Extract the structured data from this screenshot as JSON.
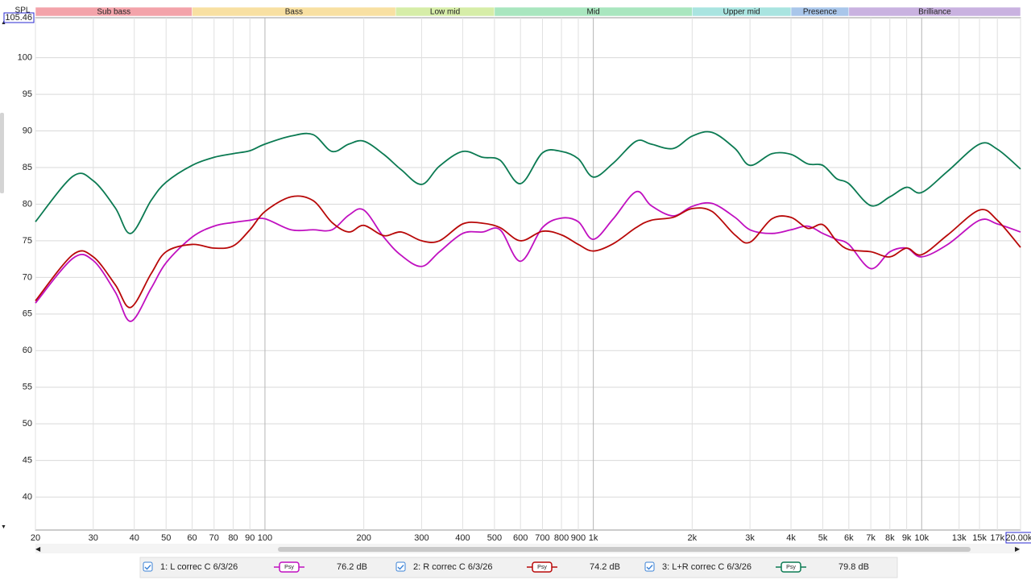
{
  "chart_data": {
    "type": "line",
    "y_label": "SPL",
    "log_x": true,
    "grid": true,
    "xlim": [
      20,
      20000
    ],
    "ylim": [
      35.5,
      105.46
    ],
    "yticks": [
      40,
      45,
      50,
      55,
      60,
      65,
      70,
      75,
      80,
      85,
      90,
      95,
      100
    ],
    "xticks": [
      20,
      30,
      40,
      50,
      60,
      70,
      80,
      90,
      100,
      200,
      300,
      400,
      500,
      600,
      700,
      800,
      900,
      {
        "value": 1000,
        "label": "1k"
      },
      {
        "value": 2000,
        "label": "2k"
      },
      {
        "value": 3000,
        "label": "3k"
      },
      {
        "value": 4000,
        "label": "4k"
      },
      {
        "value": 5000,
        "label": "5k"
      },
      {
        "value": 6000,
        "label": "6k"
      },
      {
        "value": 7000,
        "label": "7k"
      },
      {
        "value": 8000,
        "label": "8k"
      },
      {
        "value": 9000,
        "label": "9k"
      },
      {
        "value": 10000,
        "label": "10k"
      },
      {
        "value": 13000,
        "label": "13k",
        "color": "#9a9a9a"
      },
      {
        "value": 15000,
        "label": "15k",
        "color": "#9a9a9a"
      },
      {
        "value": 17000,
        "label": "17k",
        "color": "#9a9a9a"
      },
      {
        "value": 20000,
        "label": "20.00k"
      }
    ],
    "bands": [
      {
        "name": "Sub bass",
        "from": 20,
        "to": 60,
        "color": "#f3a3aa"
      },
      {
        "name": "Bass",
        "from": 60,
        "to": 250,
        "color": "#f8e0a2"
      },
      {
        "name": "Low mid",
        "from": 250,
        "to": 500,
        "color": "#d6eda8"
      },
      {
        "name": "Mid",
        "from": 500,
        "to": 2000,
        "color": "#a9e6bf"
      },
      {
        "name": "Upper mid",
        "from": 2000,
        "to": 4000,
        "color": "#a9e4e0"
      },
      {
        "name": "Presence",
        "from": 4000,
        "to": 6000,
        "color": "#a9c6ea"
      },
      {
        "name": "Brilliance",
        "from": 6000,
        "to": 20000,
        "color": "#c9b2e0"
      }
    ],
    "x": [
      20,
      26,
      30,
      35,
      39,
      45,
      50,
      60,
      70,
      80,
      90,
      100,
      120,
      140,
      160,
      180,
      200,
      230,
      260,
      300,
      340,
      400,
      460,
      520,
      600,
      700,
      800,
      900,
      1000,
      1150,
      1350,
      1500,
      1750,
      2000,
      2300,
      2700,
      3000,
      3500,
      4000,
      4500,
      5000,
      5500,
      6000,
      7000,
      8000,
      9000,
      10000,
      12000,
      15000,
      17000,
      20000
    ],
    "series": [
      {
        "name": "1: L correc C 6/3/26",
        "color": "#c010c0",
        "psy": "Psy",
        "level": "76.2 dB",
        "values": [
          66.5,
          72.6,
          72.3,
          68.0,
          64.0,
          68.5,
          72.0,
          75.5,
          77.0,
          77.5,
          77.8,
          78.0,
          76.5,
          76.5,
          76.5,
          78.5,
          79.2,
          75.5,
          73.0,
          71.5,
          73.5,
          76.0,
          76.2,
          76.5,
          72.2,
          76.8,
          78.1,
          77.6,
          75.2,
          78.0,
          81.7,
          79.8,
          78.4,
          79.7,
          80.1,
          78.2,
          76.5,
          76.0,
          76.5,
          77.0,
          76.0,
          75.2,
          74.5,
          71.2,
          73.5,
          74.0,
          72.8,
          74.5,
          77.8,
          77.3,
          76.2
        ]
      },
      {
        "name": "2: R correc C 6/3/26",
        "color": "#b80808",
        "psy": "Psy",
        "level": "74.2 dB",
        "values": [
          66.8,
          73.1,
          72.8,
          69.0,
          65.9,
          70.5,
          73.5,
          74.5,
          74.0,
          74.3,
          76.5,
          79.0,
          81.0,
          80.5,
          77.5,
          76.2,
          77.1,
          75.7,
          76.2,
          75.0,
          75.0,
          77.3,
          77.4,
          76.8,
          75.0,
          76.3,
          75.8,
          74.5,
          73.6,
          74.6,
          76.8,
          77.8,
          78.2,
          79.4,
          79.0,
          75.8,
          74.8,
          78.0,
          78.2,
          76.7,
          77.2,
          75.0,
          73.8,
          73.5,
          72.8,
          74.0,
          73.1,
          75.8,
          79.2,
          77.8,
          74.1
        ]
      },
      {
        "name": "3: L+R correc C 6/3/26",
        "color": "#0b7a52",
        "psy": "Psy",
        "level": "79.8 dB",
        "values": [
          77.6,
          83.8,
          83.2,
          79.5,
          76.0,
          80.5,
          83.0,
          85.3,
          86.4,
          86.9,
          87.3,
          88.2,
          89.3,
          89.5,
          87.2,
          88.2,
          88.6,
          86.8,
          84.7,
          82.7,
          85.2,
          87.2,
          86.4,
          86.0,
          82.8,
          87.0,
          87.2,
          86.2,
          83.7,
          85.6,
          88.6,
          88.2,
          87.6,
          89.3,
          89.8,
          87.6,
          85.3,
          86.9,
          86.8,
          85.5,
          85.3,
          83.5,
          82.8,
          79.8,
          81.0,
          82.3,
          81.6,
          84.5,
          88.2,
          87.5,
          84.8
        ]
      }
    ]
  }
}
